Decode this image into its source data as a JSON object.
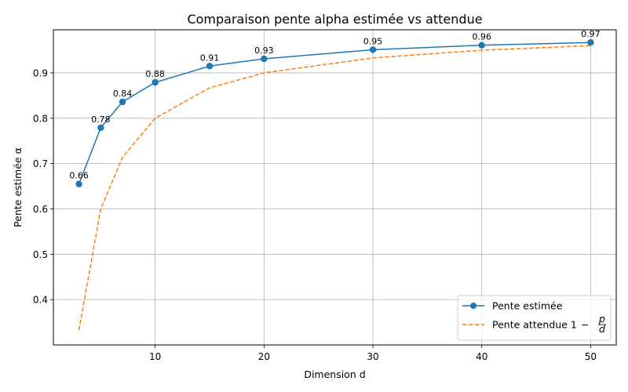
{
  "chart_data": {
    "type": "line",
    "title": "Comparaison pente alpha estimée vs attendue",
    "xlabel": "Dimension d",
    "ylabel": "Pente estimée α",
    "xlim": [
      0.65,
      52.35
    ],
    "ylim": [
      0.3,
      0.995
    ],
    "xticks": [
      10,
      20,
      30,
      40,
      50
    ],
    "yticks": [
      0.4,
      0.5,
      0.6,
      0.7,
      0.8,
      0.9
    ],
    "grid": true,
    "legend_position": "lower-right",
    "series": [
      {
        "name": "Pente estimée",
        "style": "solid-markers",
        "color": "#1f77b4",
        "x": [
          3,
          5,
          7,
          10,
          15,
          20,
          30,
          40,
          50
        ],
        "y": [
          0.655,
          0.779,
          0.836,
          0.879,
          0.915,
          0.931,
          0.951,
          0.961,
          0.967
        ],
        "labels": [
          "0.66",
          "0.78",
          "0.84",
          "0.88",
          "0.91",
          "0.93",
          "0.95",
          "0.96",
          "0.97"
        ]
      },
      {
        "name": "Pente attendue 1 − p/d",
        "style": "dashed",
        "color": "#ff7f0e",
        "x": [
          3,
          5,
          7,
          10,
          15,
          20,
          30,
          40,
          50
        ],
        "y": [
          0.333,
          0.6,
          0.714,
          0.8,
          0.867,
          0.9,
          0.933,
          0.95,
          0.96
        ]
      }
    ]
  },
  "legend": {
    "estimated_label": "Pente estimée",
    "expected_label": "Pente attendue 1",
    "expected_minus": "−",
    "frac_num": "p",
    "frac_den": "d"
  }
}
